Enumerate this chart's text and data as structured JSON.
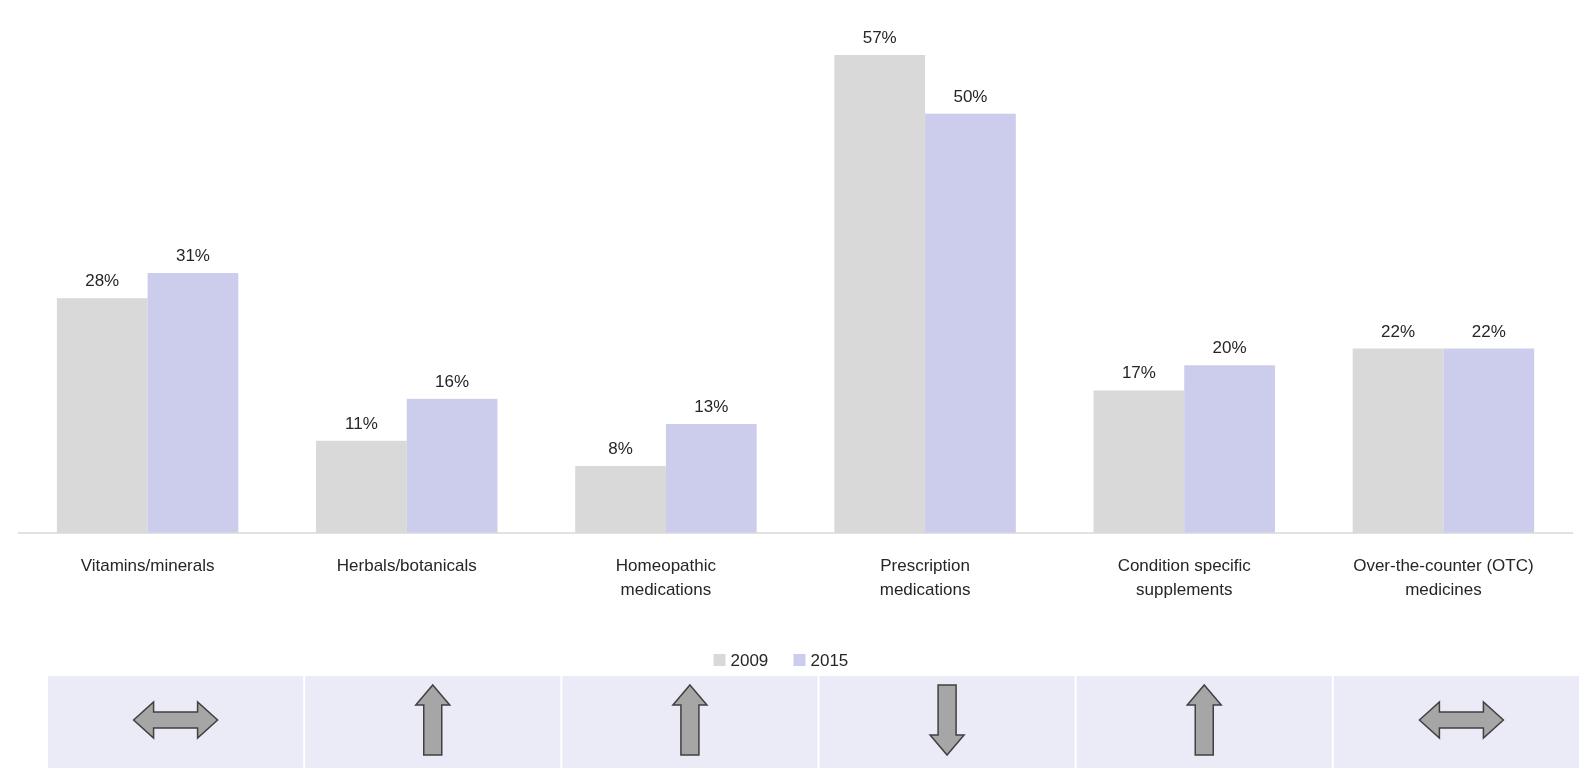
{
  "chart_data": {
    "type": "bar",
    "categories": [
      "Vitamins/minerals",
      "Herbals/botanicals",
      "Homeopathic medications",
      "Prescription medications",
      "Condition specific supplements",
      "Over-the-counter (OTC) medicines"
    ],
    "series": [
      {
        "name": "2009",
        "color": "#d9d9d9",
        "values": [
          28,
          11,
          8,
          57,
          17,
          22
        ],
        "value_labels": [
          "28%",
          "11%",
          "8%",
          "57%",
          "17%",
          "22%"
        ]
      },
      {
        "name": "2015",
        "color": "#ccccec",
        "values": [
          31,
          16,
          13,
          50,
          20,
          22
        ],
        "value_labels": [
          "31%",
          "16%",
          "13%",
          "50%",
          "20%",
          "22%"
        ]
      }
    ],
    "legend": "bottom",
    "grid": false
  }
}
